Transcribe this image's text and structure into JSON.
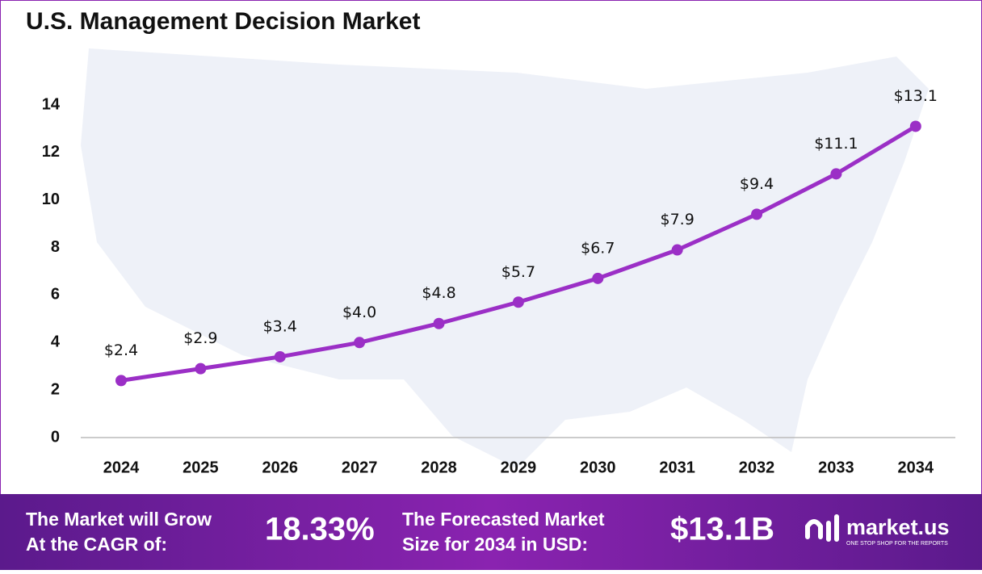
{
  "chart_data": {
    "type": "line",
    "title": "U.S. Management  Decision Market",
    "categories": [
      "2024",
      "2025",
      "2026",
      "2027",
      "2028",
      "2029",
      "2030",
      "2031",
      "2032",
      "2033",
      "2034"
    ],
    "values": [
      2.4,
      2.9,
      3.4,
      4.0,
      4.8,
      5.7,
      6.7,
      7.9,
      9.4,
      11.1,
      13.1
    ],
    "value_labels": [
      "$2.4",
      "$2.9",
      "$3.4",
      "$4.0",
      "$4.8",
      "$5.7",
      "$6.7",
      "$7.9",
      "$9.4",
      "$11.1",
      "$13.1"
    ],
    "color": "#9b2fc6",
    "ylim": [
      0,
      14
    ],
    "yticks": [
      0,
      2,
      4,
      6,
      8,
      10,
      12,
      14
    ],
    "grid": false
  },
  "footer": {
    "cagr_text": [
      "The Market will Grow",
      "At the CAGR of:"
    ],
    "cagr_value": "18.33%",
    "forecast_text": [
      "The Forecasted Market",
      "Size for 2034 in USD:"
    ],
    "forecast_value": "$13.1B",
    "brand": "market.us",
    "tagline": "ONE STOP SHOP FOR THE REPORTS"
  }
}
